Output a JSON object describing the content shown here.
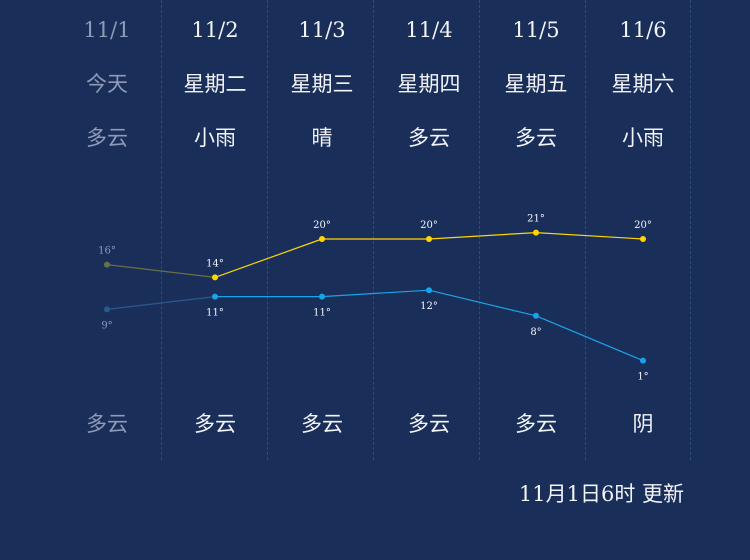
{
  "days": [
    {
      "date": "11/1",
      "weekday": "今天",
      "day_weather": "多云",
      "night_weather": "多云",
      "past": true
    },
    {
      "date": "11/2",
      "weekday": "星期二",
      "day_weather": "小雨",
      "night_weather": "多云",
      "past": false
    },
    {
      "date": "11/3",
      "weekday": "星期三",
      "day_weather": "晴",
      "night_weather": "多云",
      "past": false
    },
    {
      "date": "11/4",
      "weekday": "星期四",
      "day_weather": "多云",
      "night_weather": "多云",
      "past": false
    },
    {
      "date": "11/5",
      "weekday": "星期五",
      "day_weather": "多云",
      "night_weather": "多云",
      "past": false
    },
    {
      "date": "11/6",
      "weekday": "星期六",
      "day_weather": "小雨",
      "night_weather": "阴",
      "past": false
    }
  ],
  "chart_data": {
    "type": "line",
    "categories": [
      "11/1",
      "11/2",
      "11/3",
      "11/4",
      "11/5",
      "11/6"
    ],
    "series": [
      {
        "values": [
          16,
          14,
          20,
          20,
          21,
          20
        ],
        "color": "#ffd600",
        "past_color": "#6b6f45"
      },
      {
        "values": [
          9,
          11,
          11,
          12,
          8,
          1
        ],
        "color": "#1aa3e8",
        "past_color": "#2a5a8c"
      }
    ],
    "labels": {
      "high": [
        "16°",
        "14°",
        "20°",
        "20°",
        "21°",
        "20°"
      ],
      "low": [
        "9°",
        "11°",
        "11°",
        "12°",
        "8°",
        "1°"
      ]
    },
    "title": "",
    "xlabel": "",
    "ylabel": ""
  },
  "update_text": "11月1日6时 更新",
  "colors": {
    "background": "#1a2e5a",
    "text": "#f2f4f8",
    "past_text": "#8e9bb6"
  }
}
